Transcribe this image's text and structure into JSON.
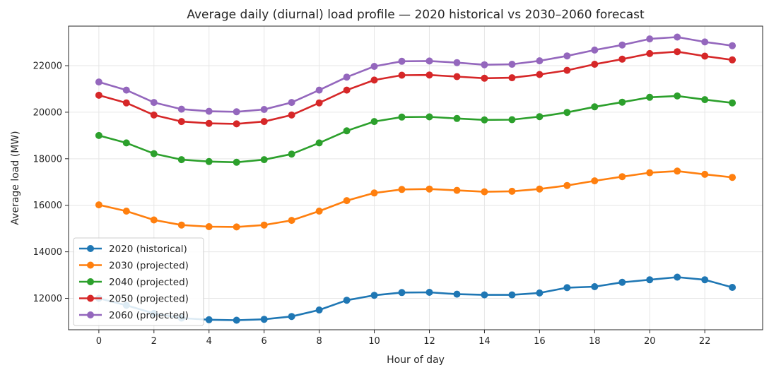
{
  "chart_data": {
    "type": "line",
    "title": "Average daily (diurnal) load profile — 2020 historical vs 2030–2060 forecast",
    "xlabel": "Hour of day",
    "ylabel": "Average load (MW)",
    "xlim": [
      -1.1,
      24.1
    ],
    "ylim": [
      10650,
      23700
    ],
    "x_ticks": [
      0,
      2,
      4,
      6,
      8,
      10,
      12,
      14,
      16,
      18,
      20,
      22
    ],
    "y_ticks": [
      12000,
      14000,
      16000,
      18000,
      20000,
      22000
    ],
    "grid": true,
    "legend_position": "lower-left",
    "x": [
      0,
      1,
      2,
      3,
      4,
      5,
      6,
      7,
      8,
      9,
      10,
      11,
      12,
      13,
      14,
      15,
      16,
      17,
      18,
      19,
      20,
      21,
      22,
      23
    ],
    "series": [
      {
        "name": "2020 (historical)",
        "color": "#1f77b4",
        "values": [
          12000,
          11700,
          11350,
          11150,
          11080,
          11060,
          11100,
          11220,
          11500,
          11920,
          12130,
          12250,
          12260,
          12180,
          12150,
          12150,
          12230,
          12460,
          12500,
          12690,
          12800,
          12910,
          12800,
          12470
        ]
      },
      {
        "name": "2030 (projected)",
        "color": "#ff7f0e",
        "values": [
          16020,
          15750,
          15370,
          15150,
          15080,
          15070,
          15150,
          15350,
          15750,
          16200,
          16530,
          16680,
          16700,
          16640,
          16580,
          16600,
          16700,
          16850,
          17050,
          17230,
          17400,
          17470,
          17330,
          17200
        ]
      },
      {
        "name": "2040 (projected)",
        "color": "#2ca02c",
        "values": [
          19000,
          18680,
          18220,
          17960,
          17880,
          17850,
          17960,
          18200,
          18680,
          19200,
          19600,
          19790,
          19800,
          19730,
          19670,
          19680,
          19810,
          19990,
          20230,
          20430,
          20640,
          20700,
          20540,
          20400
        ]
      },
      {
        "name": "2050 (projected)",
        "color": "#d62728",
        "values": [
          20730,
          20400,
          19880,
          19600,
          19520,
          19500,
          19600,
          19880,
          20400,
          20950,
          21380,
          21590,
          21600,
          21530,
          21460,
          21480,
          21620,
          21800,
          22060,
          22280,
          22520,
          22600,
          22410,
          22250
        ]
      },
      {
        "name": "2060 (projected)",
        "color": "#9467bd",
        "values": [
          21300,
          20950,
          20420,
          20130,
          20040,
          20020,
          20120,
          20420,
          20950,
          21510,
          21970,
          22190,
          22200,
          22130,
          22040,
          22060,
          22210,
          22420,
          22670,
          22890,
          23150,
          23230,
          23020,
          22860
        ]
      }
    ]
  }
}
